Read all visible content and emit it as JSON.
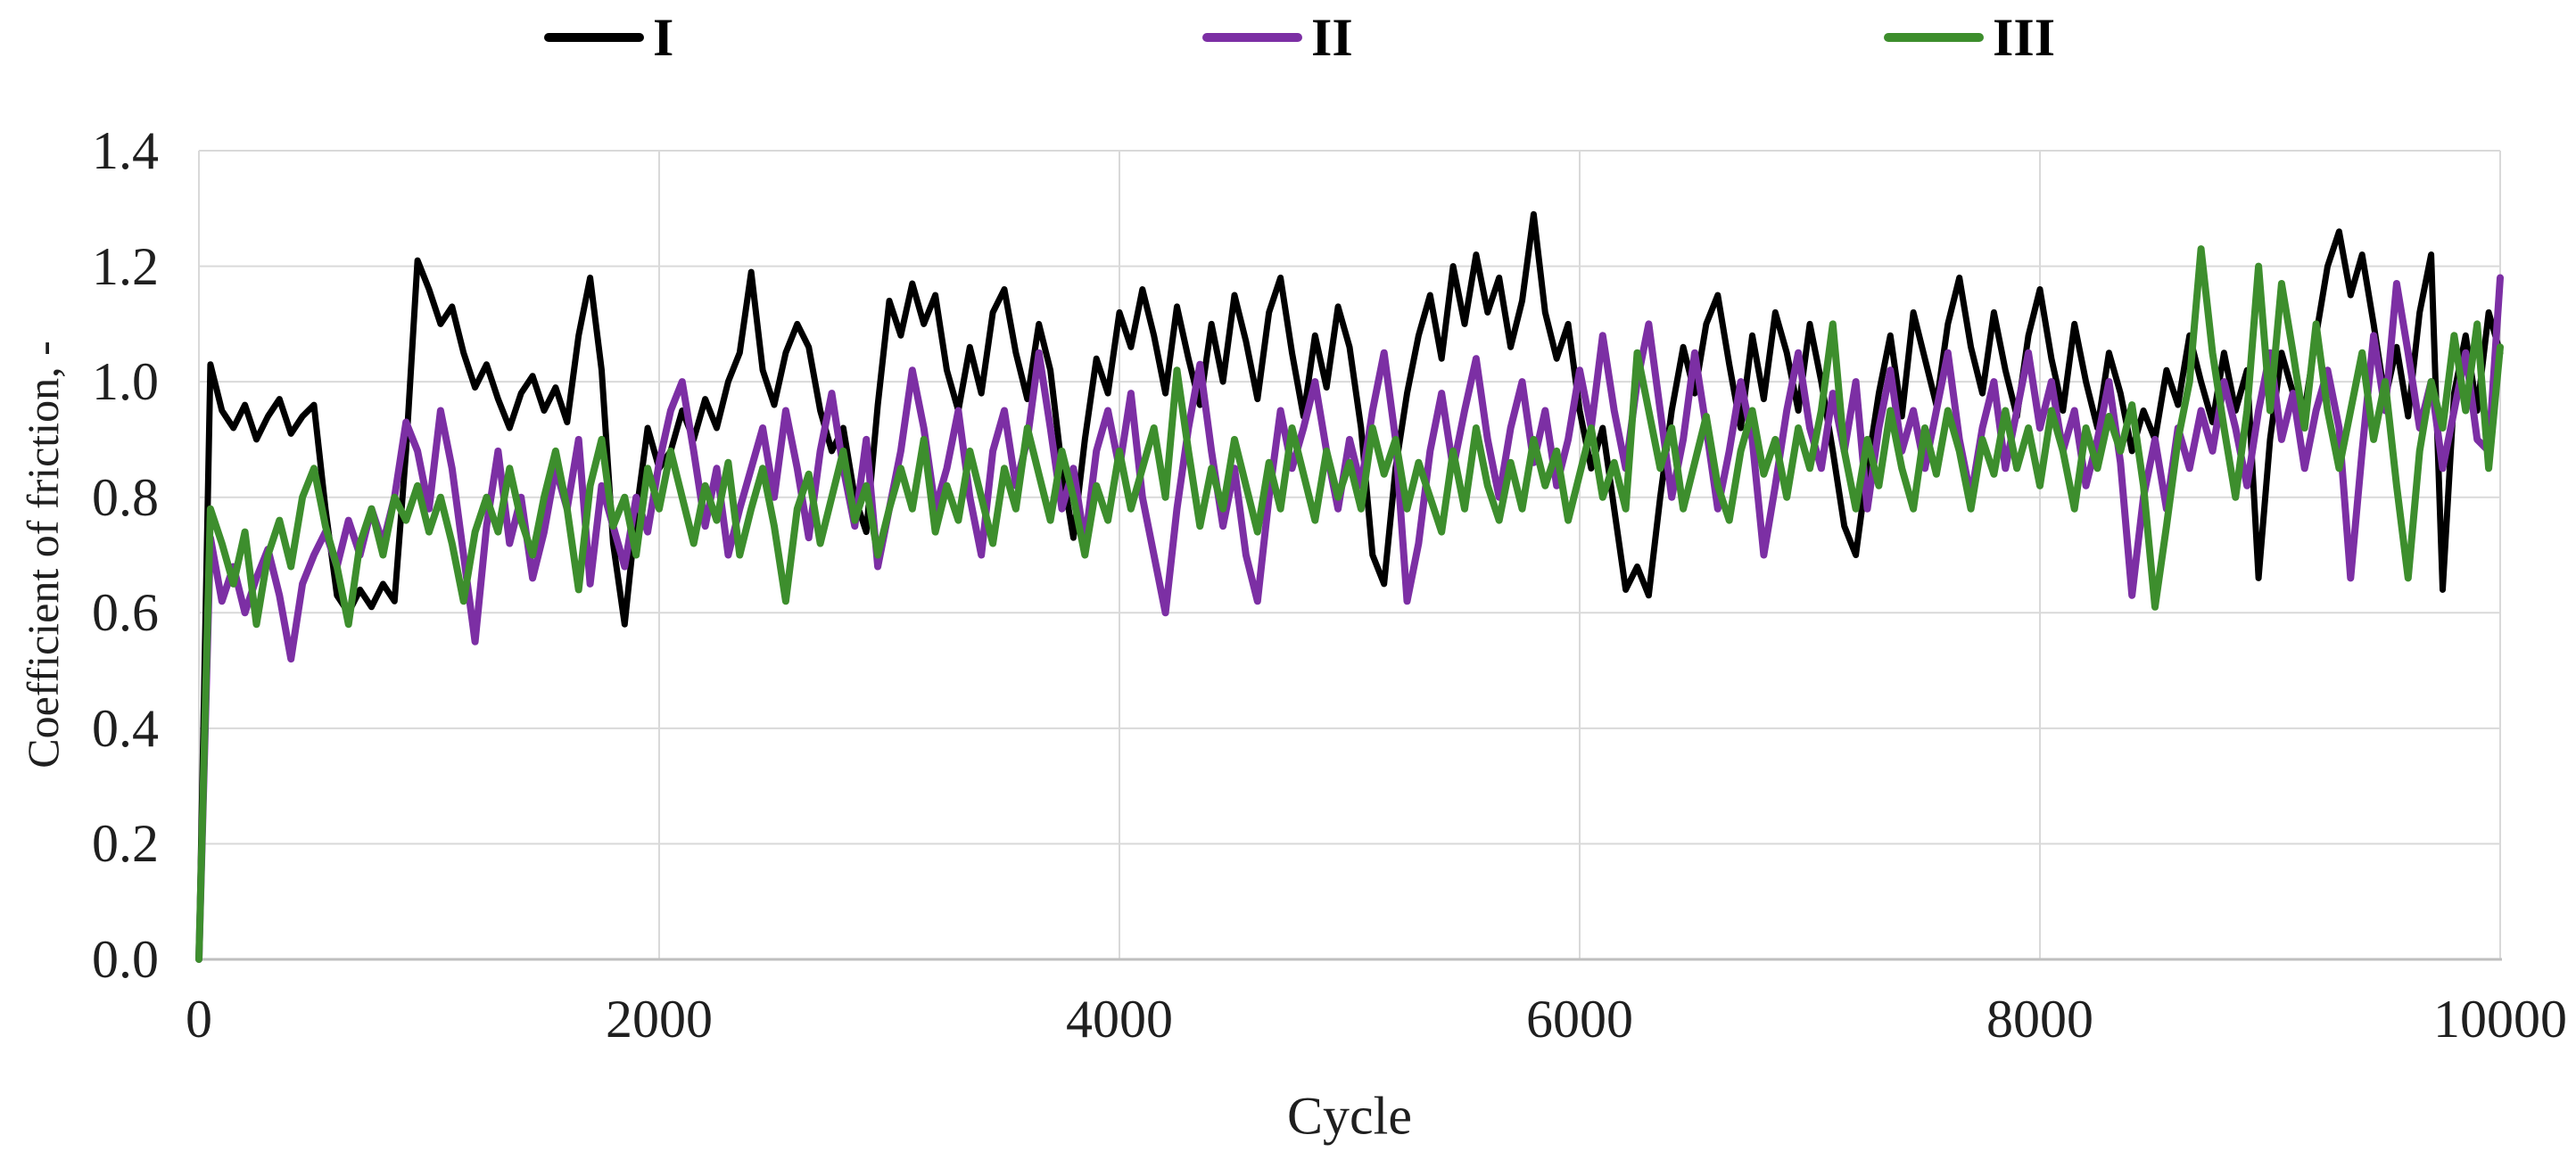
{
  "legend": {
    "items": [
      {
        "label": "I",
        "color": "#000000"
      },
      {
        "label": "II",
        "color": "#7C2FA4"
      },
      {
        "label": "III",
        "color": "#3D8E2D"
      }
    ]
  },
  "colors": {
    "grid": "#D9D9D9",
    "axis": "#BFBFBF",
    "text": "#1F1F1F",
    "background": "#FFFFFF"
  },
  "chart_data": {
    "type": "line",
    "title": "",
    "xlabel": "Cycle",
    "ylabel": "Coefficient of friction, -",
    "xlim": [
      0,
      10000
    ],
    "ylim": [
      0.0,
      1.4
    ],
    "x_ticks": [
      0,
      2000,
      4000,
      6000,
      8000,
      10000
    ],
    "x_tick_labels": [
      "0",
      "2000",
      "4000",
      "6000",
      "8000",
      "10000"
    ],
    "y_ticks": [
      0.0,
      0.2,
      0.4,
      0.6,
      0.8,
      1.0,
      1.2,
      1.4
    ],
    "y_tick_labels": [
      "0.0",
      "0.2",
      "0.4",
      "0.6",
      "0.8",
      "1.0",
      "1.2",
      "1.4"
    ],
    "grid": true,
    "legend_position": "top",
    "x_start": 0,
    "x_step": 50,
    "series": [
      {
        "name": "I",
        "color": "#000000",
        "stroke_width": 7,
        "values": [
          0.0,
          1.03,
          0.95,
          0.92,
          0.96,
          0.9,
          0.94,
          0.97,
          0.91,
          0.94,
          0.96,
          0.78,
          0.63,
          0.6,
          0.64,
          0.61,
          0.65,
          0.62,
          0.88,
          1.21,
          1.16,
          1.1,
          1.13,
          1.05,
          0.99,
          1.03,
          0.97,
          0.92,
          0.98,
          1.01,
          0.95,
          0.99,
          0.93,
          1.08,
          1.18,
          1.02,
          0.72,
          0.58,
          0.77,
          0.92,
          0.85,
          0.88,
          0.95,
          0.9,
          0.97,
          0.92,
          1.0,
          1.05,
          1.19,
          1.02,
          0.96,
          1.05,
          1.1,
          1.06,
          0.95,
          0.88,
          0.92,
          0.8,
          0.74,
          0.96,
          1.14,
          1.08,
          1.17,
          1.1,
          1.15,
          1.02,
          0.95,
          1.06,
          0.98,
          1.12,
          1.16,
          1.05,
          0.97,
          1.1,
          1.02,
          0.85,
          0.73,
          0.9,
          1.04,
          0.98,
          1.12,
          1.06,
          1.16,
          1.08,
          0.98,
          1.13,
          1.04,
          0.96,
          1.1,
          1.0,
          1.15,
          1.07,
          0.97,
          1.12,
          1.18,
          1.05,
          0.94,
          1.08,
          0.99,
          1.13,
          1.06,
          0.92,
          0.7,
          0.65,
          0.85,
          0.98,
          1.08,
          1.15,
          1.04,
          1.2,
          1.1,
          1.22,
          1.12,
          1.18,
          1.06,
          1.14,
          1.29,
          1.12,
          1.04,
          1.1,
          0.95,
          0.85,
          0.92,
          0.78,
          0.64,
          0.68,
          0.63,
          0.8,
          0.95,
          1.06,
          0.98,
          1.1,
          1.15,
          1.03,
          0.92,
          1.08,
          0.97,
          1.12,
          1.05,
          0.95,
          1.1,
          1.0,
          0.88,
          0.75,
          0.7,
          0.85,
          0.98,
          1.08,
          0.94,
          1.12,
          1.04,
          0.96,
          1.1,
          1.18,
          1.06,
          0.98,
          1.12,
          1.02,
          0.94,
          1.08,
          1.16,
          1.04,
          0.95,
          1.1,
          1.0,
          0.92,
          1.05,
          0.98,
          0.88,
          0.95,
          0.9,
          1.02,
          0.96,
          1.08,
          1.0,
          0.93,
          1.05,
          0.95,
          1.02,
          0.66,
          0.9,
          1.05,
          0.98,
          0.95,
          1.08,
          1.2,
          1.26,
          1.15,
          1.22,
          1.1,
          0.97,
          1.06,
          0.94,
          1.12,
          1.22,
          0.64,
          0.98,
          1.08,
          0.95,
          1.12,
          1.05
        ]
      },
      {
        "name": "II",
        "color": "#7C2FA4",
        "stroke_width": 8,
        "values": [
          0.0,
          0.73,
          0.62,
          0.68,
          0.6,
          0.66,
          0.71,
          0.63,
          0.52,
          0.65,
          0.7,
          0.74,
          0.68,
          0.76,
          0.7,
          0.78,
          0.72,
          0.8,
          0.93,
          0.88,
          0.78,
          0.95,
          0.85,
          0.7,
          0.55,
          0.75,
          0.88,
          0.72,
          0.8,
          0.66,
          0.74,
          0.85,
          0.78,
          0.9,
          0.65,
          0.82,
          0.75,
          0.68,
          0.8,
          0.74,
          0.86,
          0.95,
          1.0,
          0.88,
          0.75,
          0.85,
          0.7,
          0.78,
          0.85,
          0.92,
          0.8,
          0.95,
          0.85,
          0.73,
          0.88,
          0.98,
          0.85,
          0.75,
          0.9,
          0.68,
          0.78,
          0.88,
          1.02,
          0.92,
          0.78,
          0.85,
          0.95,
          0.8,
          0.7,
          0.88,
          0.95,
          0.82,
          0.9,
          1.05,
          0.92,
          0.78,
          0.85,
          0.72,
          0.88,
          0.95,
          0.85,
          0.98,
          0.8,
          0.7,
          0.6,
          0.78,
          0.92,
          1.03,
          0.88,
          0.75,
          0.85,
          0.7,
          0.62,
          0.8,
          0.95,
          0.85,
          0.92,
          1.0,
          0.88,
          0.78,
          0.9,
          0.82,
          0.95,
          1.05,
          0.9,
          0.62,
          0.72,
          0.88,
          0.98,
          0.85,
          0.95,
          1.04,
          0.9,
          0.8,
          0.92,
          1.0,
          0.86,
          0.95,
          0.82,
          0.9,
          1.02,
          0.92,
          1.08,
          0.95,
          0.85,
          1.0,
          1.1,
          0.95,
          0.8,
          0.9,
          1.05,
          0.92,
          0.78,
          0.88,
          1.0,
          0.9,
          0.7,
          0.82,
          0.95,
          1.05,
          0.92,
          0.85,
          0.98,
          0.88,
          1.0,
          0.78,
          0.92,
          1.02,
          0.88,
          0.95,
          0.85,
          0.95,
          1.05,
          0.9,
          0.8,
          0.92,
          1.0,
          0.85,
          0.95,
          1.05,
          0.92,
          1.0,
          0.88,
          0.95,
          0.82,
          0.9,
          1.0,
          0.86,
          0.63,
          0.8,
          0.9,
          0.78,
          0.92,
          0.85,
          0.95,
          0.88,
          1.0,
          0.92,
          0.82,
          0.95,
          1.05,
          0.9,
          0.98,
          0.85,
          0.95,
          1.02,
          0.92,
          0.66,
          0.88,
          1.08,
          0.95,
          1.17,
          1.05,
          0.92,
          1.0,
          0.85,
          0.95,
          1.05,
          0.9,
          0.88,
          1.18
        ]
      },
      {
        "name": "III",
        "color": "#3D8E2D",
        "stroke_width": 8,
        "values": [
          0.0,
          0.78,
          0.72,
          0.65,
          0.74,
          0.58,
          0.7,
          0.76,
          0.68,
          0.8,
          0.85,
          0.75,
          0.68,
          0.58,
          0.72,
          0.78,
          0.7,
          0.8,
          0.76,
          0.82,
          0.74,
          0.8,
          0.72,
          0.62,
          0.74,
          0.8,
          0.74,
          0.85,
          0.76,
          0.7,
          0.8,
          0.88,
          0.78,
          0.64,
          0.82,
          0.9,
          0.75,
          0.8,
          0.7,
          0.85,
          0.78,
          0.88,
          0.8,
          0.72,
          0.82,
          0.76,
          0.86,
          0.7,
          0.78,
          0.85,
          0.75,
          0.62,
          0.78,
          0.84,
          0.72,
          0.8,
          0.88,
          0.76,
          0.82,
          0.7,
          0.78,
          0.85,
          0.78,
          0.9,
          0.74,
          0.82,
          0.76,
          0.88,
          0.8,
          0.72,
          0.85,
          0.78,
          0.92,
          0.84,
          0.76,
          0.88,
          0.8,
          0.7,
          0.82,
          0.76,
          0.88,
          0.78,
          0.85,
          0.92,
          0.8,
          1.02,
          0.88,
          0.75,
          0.85,
          0.78,
          0.9,
          0.82,
          0.74,
          0.86,
          0.78,
          0.92,
          0.84,
          0.76,
          0.88,
          0.8,
          0.86,
          0.78,
          0.92,
          0.84,
          0.9,
          0.78,
          0.86,
          0.8,
          0.74,
          0.88,
          0.78,
          0.92,
          0.82,
          0.76,
          0.86,
          0.78,
          0.9,
          0.82,
          0.88,
          0.76,
          0.84,
          0.92,
          0.8,
          0.86,
          0.78,
          1.05,
          0.95,
          0.85,
          0.92,
          0.78,
          0.86,
          0.94,
          0.82,
          0.76,
          0.88,
          0.95,
          0.84,
          0.9,
          0.8,
          0.92,
          0.85,
          0.95,
          1.1,
          0.88,
          0.78,
          0.9,
          0.82,
          0.95,
          0.85,
          0.78,
          0.92,
          0.84,
          0.95,
          0.88,
          0.78,
          0.9,
          0.84,
          0.95,
          0.85,
          0.92,
          0.82,
          0.95,
          0.88,
          0.78,
          0.92,
          0.85,
          0.94,
          0.88,
          0.96,
          0.82,
          0.61,
          0.75,
          0.9,
          1.0,
          1.23,
          1.05,
          0.92,
          0.8,
          0.95,
          1.2,
          0.95,
          1.17,
          1.05,
          0.92,
          1.1,
          0.95,
          0.85,
          0.95,
          1.05,
          0.9,
          1.0,
          0.82,
          0.66,
          0.88,
          1.0,
          0.92,
          1.08,
          0.95,
          1.1,
          0.85,
          1.06
        ]
      }
    ]
  }
}
